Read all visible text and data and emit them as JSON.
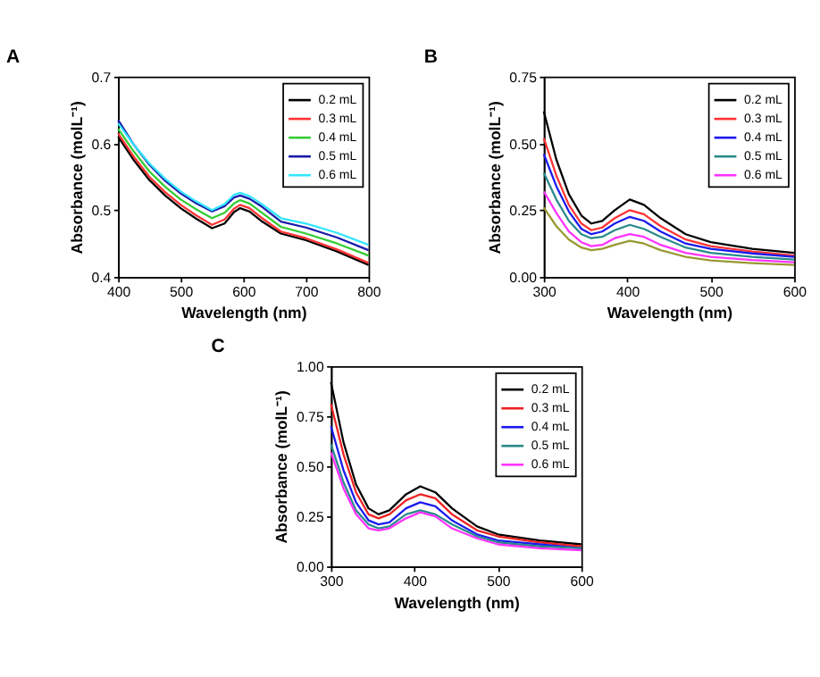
{
  "chart_data": [
    {
      "type": "line",
      "title": "A",
      "xlabel": "Wavelength (nm)",
      "ylabel": "Absorbance (molL⁻¹)",
      "xlim": [
        400,
        800
      ],
      "xticks": [
        400,
        500,
        600,
        700,
        800
      ],
      "ylim": [
        0.4,
        0.7
      ],
      "yticks": [
        0.4,
        0.5,
        0.6,
        0.7
      ],
      "grid": false,
      "legend": "top right",
      "x": [
        400,
        425,
        450,
        475,
        500,
        525,
        550,
        570,
        585,
        595,
        610,
        630,
        660,
        700,
        750,
        800
      ],
      "series": [
        {
          "name": "0.2 mL",
          "color": "#000000",
          "values": [
            0.61,
            0.575,
            0.545,
            0.522,
            0.503,
            0.487,
            0.473,
            0.48,
            0.497,
            0.503,
            0.498,
            0.483,
            0.465,
            0.455,
            0.438,
            0.418
          ]
        },
        {
          "name": "0.3 mL",
          "color": "#ff3333",
          "values": [
            0.615,
            0.58,
            0.55,
            0.527,
            0.508,
            0.492,
            0.478,
            0.486,
            0.502,
            0.508,
            0.503,
            0.488,
            0.468,
            0.458,
            0.441,
            0.421
          ]
        },
        {
          "name": "0.4 mL",
          "color": "#33cc33",
          "values": [
            0.622,
            0.588,
            0.558,
            0.535,
            0.516,
            0.501,
            0.488,
            0.496,
            0.51,
            0.515,
            0.51,
            0.496,
            0.475,
            0.465,
            0.45,
            0.432
          ]
        },
        {
          "name": "0.5 mL",
          "color": "#1a1aaa",
          "values": [
            0.635,
            0.598,
            0.568,
            0.544,
            0.525,
            0.51,
            0.498,
            0.506,
            0.519,
            0.522,
            0.517,
            0.505,
            0.483,
            0.474,
            0.459,
            0.44
          ]
        },
        {
          "name": "0.6 mL",
          "color": "#33e6ff",
          "values": [
            0.63,
            0.598,
            0.57,
            0.547,
            0.528,
            0.513,
            0.5,
            0.509,
            0.523,
            0.526,
            0.521,
            0.509,
            0.488,
            0.48,
            0.466,
            0.448
          ]
        }
      ]
    },
    {
      "type": "line",
      "title": "B",
      "xlabel": "Wavelength (nm)",
      "ylabel": "Absorbance (molL⁻¹)",
      "xlim": [
        300,
        600
      ],
      "xticks": [
        300,
        400,
        500,
        600
      ],
      "ylim": [
        0,
        0.75
      ],
      "yticks": [
        {
          "value": 0,
          "label": "0.00"
        },
        {
          "value": 0.25,
          "label": "0.25"
        },
        {
          "value": 0.5,
          "label": "0.50"
        },
        {
          "value": 0.75,
          "label": "0.75"
        }
      ],
      "grid": false,
      "legend": "top right",
      "x": [
        300,
        315,
        330,
        345,
        357,
        370,
        385,
        403,
        420,
        440,
        470,
        500,
        550,
        600
      ],
      "series": [
        {
          "name": "0.2 mL",
          "color": "#000000",
          "values": [
            0.62,
            0.44,
            0.31,
            0.23,
            0.2,
            0.21,
            0.25,
            0.29,
            0.27,
            0.22,
            0.16,
            0.13,
            0.105,
            0.09
          ]
        },
        {
          "name": "0.3 mL",
          "color": "#ff3333",
          "values": [
            0.52,
            0.38,
            0.27,
            0.2,
            0.175,
            0.185,
            0.22,
            0.25,
            0.235,
            0.19,
            0.14,
            0.115,
            0.095,
            0.08
          ]
        },
        {
          "name": "0.4 mL",
          "color": "#1a1aee",
          "values": [
            0.46,
            0.34,
            0.245,
            0.18,
            0.16,
            0.17,
            0.2,
            0.225,
            0.21,
            0.17,
            0.125,
            0.105,
            0.088,
            0.075
          ]
        },
        {
          "name": "0.5 mL",
          "color": "#2a8a8a",
          "values": [
            0.39,
            0.29,
            0.21,
            0.16,
            0.145,
            0.15,
            0.175,
            0.195,
            0.18,
            0.15,
            0.11,
            0.09,
            0.075,
            0.065
          ]
        },
        {
          "name": "0.6 mL",
          "color": "#ff33ff",
          "values": [
            0.32,
            0.24,
            0.17,
            0.13,
            0.115,
            0.12,
            0.145,
            0.16,
            0.15,
            0.12,
            0.09,
            0.075,
            0.063,
            0.055
          ]
        },
        {
          "color": "#999933",
          "values": [
            0.26,
            0.19,
            0.14,
            0.11,
            0.1,
            0.105,
            0.12,
            0.135,
            0.125,
            0.1,
            0.075,
            0.062,
            0.052,
            0.045
          ]
        }
      ]
    },
    {
      "type": "line",
      "title": "C",
      "xlabel": "Wavelength (nm)",
      "ylabel": "Absorbance (molL⁻¹)",
      "xlim": [
        300,
        600
      ],
      "xticks": [
        300,
        400,
        500,
        600
      ],
      "ylim": [
        0,
        1
      ],
      "yticks": [
        {
          "value": 0,
          "label": "0.00"
        },
        {
          "value": 0.25,
          "label": "0.25"
        },
        {
          "value": 0.5,
          "label": "0.50"
        },
        {
          "value": 0.75,
          "label": "0.75"
        },
        {
          "value": 1,
          "label": "1.00"
        }
      ],
      "grid": false,
      "legend": "top right",
      "x": [
        300,
        315,
        330,
        345,
        357,
        370,
        390,
        407,
        425,
        445,
        475,
        500,
        550,
        600
      ],
      "series": [
        {
          "name": "0.2 mL",
          "color": "#000000",
          "values": [
            0.92,
            0.62,
            0.41,
            0.29,
            0.26,
            0.28,
            0.36,
            0.4,
            0.37,
            0.29,
            0.2,
            0.16,
            0.13,
            0.11
          ]
        },
        {
          "name": "0.3 mL",
          "color": "#ee2222",
          "values": [
            0.81,
            0.56,
            0.37,
            0.26,
            0.24,
            0.26,
            0.33,
            0.36,
            0.34,
            0.26,
            0.18,
            0.15,
            0.12,
            0.1
          ]
        },
        {
          "name": "0.4 mL",
          "color": "#1a1aee",
          "values": [
            0.7,
            0.48,
            0.32,
            0.23,
            0.21,
            0.22,
            0.29,
            0.32,
            0.3,
            0.23,
            0.16,
            0.13,
            0.11,
            0.09
          ]
        },
        {
          "name": "0.5 mL",
          "color": "#2a8a8a",
          "values": [
            0.61,
            0.42,
            0.28,
            0.21,
            0.19,
            0.2,
            0.26,
            0.28,
            0.26,
            0.21,
            0.15,
            0.12,
            0.1,
            0.09
          ]
        },
        {
          "name": "0.6 mL",
          "color": "#ff33ff",
          "values": [
            0.57,
            0.39,
            0.26,
            0.19,
            0.18,
            0.19,
            0.24,
            0.27,
            0.25,
            0.19,
            0.14,
            0.11,
            0.09,
            0.08
          ]
        }
      ]
    }
  ]
}
